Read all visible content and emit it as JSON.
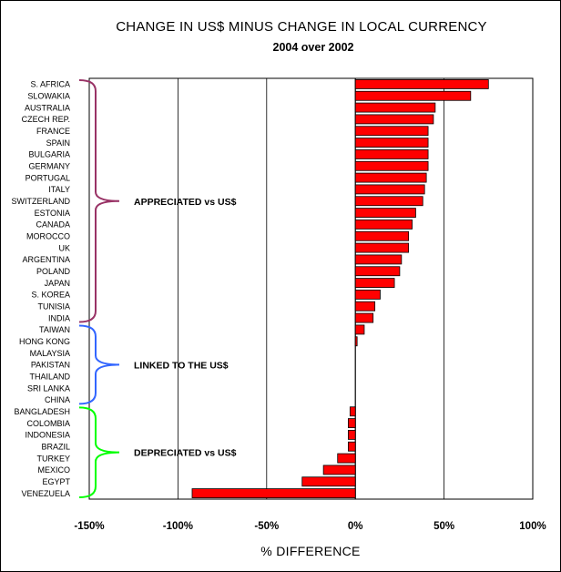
{
  "chart_data": {
    "type": "bar",
    "orientation": "horizontal",
    "title": "CHANGE IN US$ MINUS CHANGE IN LOCAL CURRENCY",
    "subtitle": "2004 over 2002",
    "xlabel": "% DIFFERENCE",
    "xlim": [
      -150,
      100
    ],
    "xticks": [
      -150,
      -100,
      -50,
      0,
      50,
      100
    ],
    "tick_labels": [
      "-150%",
      "-100%",
      "-50%",
      "0%",
      "50%",
      "100%"
    ],
    "grid": "vertical",
    "bar_color": "#ff0000",
    "categories": [
      "S. AFRICA",
      "SLOWAKIA",
      "AUSTRALIA",
      "CZECH REP.",
      "FRANCE",
      "SPAIN",
      "BULGARIA",
      "GERMANY",
      "PORTUGAL",
      "ITALY",
      "SWITZERLAND",
      "ESTONIA",
      "CANADA",
      "MOROCCO",
      "UK",
      "ARGENTINA",
      "POLAND",
      "JAPAN",
      "S. KOREA",
      "TUNISIA",
      "INDIA",
      "TAIWAN",
      "HONG KONG",
      "MALAYSIA",
      "PAKISTAN",
      "THAILAND",
      "SRI LANKA",
      "CHINA",
      "BANGLADESH",
      "COLOMBIA",
      "INDONESIA",
      "BRAZIL",
      "TURKEY",
      "MEXICO",
      "EGYPT",
      "VENEZUELA"
    ],
    "values": [
      75,
      65,
      45,
      44,
      41,
      41,
      41,
      41,
      40,
      39,
      38,
      34,
      32,
      30,
      30,
      26,
      25,
      22,
      14,
      11,
      10,
      5,
      1,
      0,
      0,
      0,
      0,
      0,
      -3,
      -4,
      -4,
      -4,
      -10,
      -18,
      -30,
      -92
    ],
    "groups": [
      {
        "label": "APPRECIATED vs US$",
        "color": "#993366",
        "from": 0,
        "to": 20
      },
      {
        "label": "LINKED TO  THE US$",
        "color": "#3366ff",
        "from": 21,
        "to": 27
      },
      {
        "label": "DEPRECIATED vs US$",
        "color": "#00ff00",
        "from": 28,
        "to": 35
      }
    ]
  }
}
